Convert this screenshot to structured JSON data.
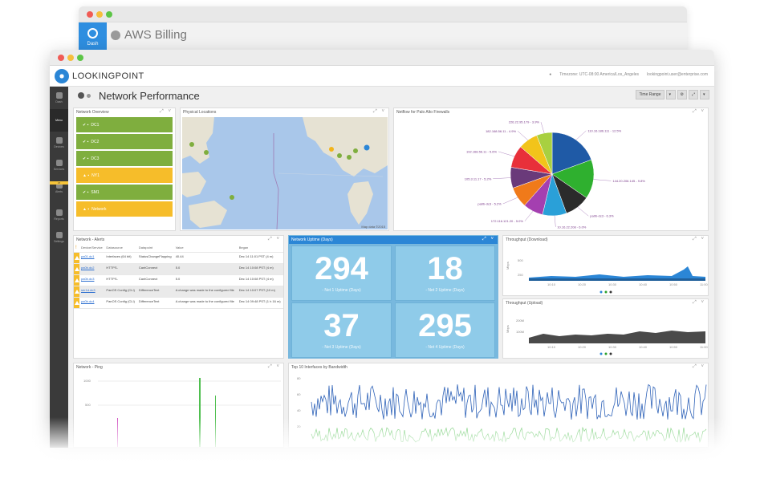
{
  "back_window": {
    "tab_label": "Dash",
    "title": "AWS Billing"
  },
  "app": {
    "logo_text": "LOOKINGPOINT",
    "header_timezone": "Timezone: UTC-08:00 America/Los_Angeles",
    "header_user": "lookingpoint.user@enterprise.com"
  },
  "sidebar": {
    "items": [
      {
        "label": "Dash",
        "icon": "dashboard-icon"
      },
      {
        "label": "Devices",
        "icon": "devices-icon"
      },
      {
        "label": "Services",
        "icon": "services-icon"
      },
      {
        "label": "Alerts",
        "icon": "alerts-icon"
      },
      {
        "label": "Reports",
        "icon": "reports-icon"
      },
      {
        "label": "Settings",
        "icon": "settings-icon"
      }
    ],
    "active_label": "Menu",
    "alert_count": "47"
  },
  "page": {
    "title": "Network Performance",
    "toolbar": {
      "time_range": "Time Range"
    }
  },
  "widgets": {
    "overview": {
      "title": "Network Overview",
      "rows": [
        {
          "label": "DC1",
          "status": "green"
        },
        {
          "label": "DC2",
          "status": "green"
        },
        {
          "label": "DC3",
          "status": "green"
        },
        {
          "label": "NY1",
          "status": "yellow"
        },
        {
          "label": "SM1",
          "status": "green"
        },
        {
          "label": "Network",
          "status": "yellow"
        }
      ]
    },
    "map": {
      "title": "Physical Locations",
      "attribution": "Map data ©2015"
    },
    "pie": {
      "title": "Netflow for Palo Alto Firewalls"
    },
    "alerts": {
      "title": "Network - Alerts",
      "headers": [
        "",
        "Device/Service",
        "Datasource",
        "Datapoint",
        "Value",
        "Began"
      ],
      "rows": [
        {
          "device": "pa01.dc1",
          "ds": "Interfaces (64 bit)",
          "dp": "StatusChangeFlapping",
          "value": "40.44",
          "began": "Dec 14 11:01 PST (4 m)"
        },
        {
          "device": "pa0b.dc2",
          "ds": "HTTPS-",
          "dp": "CantConnect",
          "value": "5.0",
          "began": "Dec 14 10:08 PST (4 m)"
        },
        {
          "device": "pa0b.dc3",
          "ds": "HTTPS-",
          "dp": "CantConnect",
          "value": "5.0",
          "began": "Dec 14 10:08 PST (4 m)"
        },
        {
          "device": "ser1d.dc3",
          "ds": "PanOS Config (CLI)",
          "dp": "DifferenceText",
          "value": "A change was made to the configured file",
          "began": "Dec 14 10:07 PST (10 m)"
        },
        {
          "device": "pa0b.dc4",
          "ds": "PanOS Config (CLI)",
          "dp": "DifferenceText",
          "value": "A change was made to the configured file",
          "began": "Dec 14 09:48 PST (1 h 16 m)"
        }
      ]
    },
    "uptime": {
      "title": "Network Uptime (Days)",
      "boxes": [
        {
          "value": "294",
          "label": "- Net 1 Uptime (Days)"
        },
        {
          "value": "18",
          "label": "- Net 2 Uptime (Days)"
        },
        {
          "value": "37",
          "label": "- Net 3 Uptime (Days)"
        },
        {
          "value": "295",
          "label": "- Net 4 Uptime (Days)"
        }
      ]
    },
    "tp_down": {
      "title": "Throughput (Download)",
      "ylabel": "Mbps",
      "yticks": [
        "500",
        "250"
      ],
      "xticks": [
        "10:10",
        "10:20",
        "10:30",
        "10:40",
        "10:50",
        "11:00"
      ]
    },
    "tp_up": {
      "title": "Throughput (Upload)",
      "ylabel": "Mbps",
      "yticks": [
        "200M",
        "100M"
      ],
      "xticks": [
        "10:10",
        "10:20",
        "10:30",
        "10:40",
        "10:50",
        "11:00"
      ]
    },
    "ping": {
      "title": "Network - Ping",
      "yticks": [
        "1000",
        "500"
      ]
    },
    "top10": {
      "title": "Top 10 Interfaces by Bandwidth",
      "yticks": [
        "80",
        "60",
        "40",
        "20"
      ]
    }
  },
  "chart_data": [
    {
      "type": "pie",
      "title": "Netflow for Palo Alto Firewalls",
      "labels": [
        "110.16.186.111 - 12.5%",
        "144.20.206.145 - 9.8%",
        "pa0b-dc3 - 6.3%",
        "10.16.22.208 - 6.0%",
        "172.116.121.20 - 5.0%",
        "pa0b-dc3 - 5.2%",
        "105.3.11.17 - 5.2%",
        "192.168.56.11 - 5.6%",
        "182.168.56.11 - 4.9%",
        "226.22.95.179 - 3.9%"
      ],
      "values": [
        12.5,
        9.8,
        6.3,
        6.0,
        5.0,
        5.2,
        5.2,
        5.6,
        4.9,
        3.9
      ],
      "colors": [
        "#1f5aa6",
        "#2fb02f",
        "#2b2b2b",
        "#2aa0d8",
        "#a43fb0",
        "#f07a1a",
        "#6a3a7a",
        "#e8303a",
        "#f2c41a",
        "#a8d040"
      ]
    }
  ]
}
